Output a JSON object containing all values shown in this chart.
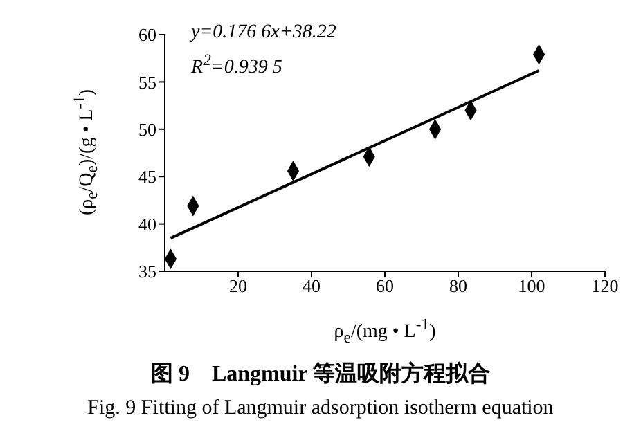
{
  "chart_data": {
    "type": "scatter",
    "title": "图 9　Langmuir 等温吸附方程拟合",
    "subtitle": "Fig. 9 Fitting of Langmuir adsorption isotherm equation",
    "xlabel": "ρ$_{e}$/(mg • L$^{-1}$)",
    "ylabel": "(ρ$_{e}$/Q$_{e}$)/(g • L$^{-1}$)",
    "annotations": [
      "y=0.176 6x+38.22",
      "R$^{2}$=0.939 5"
    ],
    "xlim": [
      0,
      120
    ],
    "xticks": [
      20,
      40,
      60,
      80,
      100,
      120
    ],
    "ylim": [
      35,
      60
    ],
    "yticks": [
      35,
      40,
      45,
      50,
      55,
      60
    ],
    "series": [
      {
        "color": "#000000",
        "marker": "diamond",
        "x": [
          1.6,
          7.7,
          35,
          55.7,
          73.7,
          83.4,
          102
        ],
        "values": [
          36.3,
          41.9,
          45.6,
          47.1,
          50,
          52,
          57.9
        ]
      },
      {
        "type": "line",
        "color": "#000000",
        "marker": "none",
        "line_style": "solid",
        "x": [
          1.6,
          102
        ],
        "values": [
          38.5,
          56.2
        ]
      }
    ]
  }
}
